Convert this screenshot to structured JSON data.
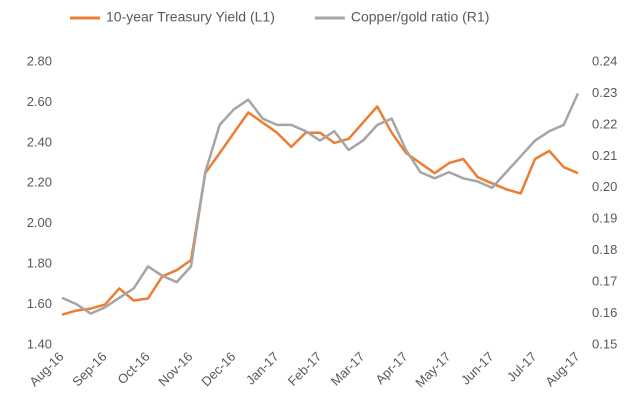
{
  "chart_data": {
    "type": "line",
    "categories": [
      "Aug-16",
      null,
      null,
      "Sep-16",
      null,
      null,
      "Oct-16",
      null,
      null,
      "Nov-16",
      null,
      null,
      "Dec-16",
      null,
      null,
      "Jan-17",
      null,
      null,
      "Feb-17",
      null,
      null,
      "Mar-17",
      null,
      null,
      "Apr-17",
      null,
      null,
      "May-17",
      null,
      null,
      "Jun-17",
      null,
      null,
      "Jul-17",
      null,
      null,
      "Aug-17"
    ],
    "series": [
      {
        "name": "10-year Treasury Yield (L1)",
        "color": "#ed7d31",
        "values": [
          1.55,
          1.57,
          1.58,
          1.6,
          1.68,
          1.62,
          1.63,
          1.74,
          1.77,
          1.82,
          2.25,
          2.35,
          2.45,
          2.55,
          2.5,
          2.45,
          2.38,
          2.45,
          2.45,
          2.4,
          2.42,
          2.5,
          2.58,
          2.45,
          2.35,
          2.3,
          2.25,
          2.3,
          2.32,
          2.23,
          2.2,
          2.17,
          2.15,
          2.32,
          2.36,
          2.28,
          2.25
        ]
      },
      {
        "name": "Copper/gold ratio (R1)",
        "color": "#a5a5a5",
        "axis": "y2",
        "values": [
          0.165,
          0.163,
          0.16,
          0.162,
          0.165,
          0.168,
          0.175,
          0.172,
          0.17,
          0.175,
          0.205,
          0.22,
          0.225,
          0.228,
          0.222,
          0.22,
          0.22,
          0.218,
          0.215,
          0.218,
          0.212,
          0.215,
          0.22,
          0.222,
          0.212,
          0.205,
          0.203,
          0.205,
          0.203,
          0.202,
          0.2,
          0.205,
          0.21,
          0.215,
          0.218,
          0.22,
          0.23
        ]
      }
    ],
    "ylim": [
      1.4,
      2.8
    ],
    "yticks": [
      {
        "value": 1.4,
        "label": "1.40"
      },
      {
        "value": 1.6,
        "label": "1.60"
      },
      {
        "value": 1.8,
        "label": "1.80"
      },
      {
        "value": 2.0,
        "label": "2.00"
      },
      {
        "value": 2.2,
        "label": "2.20"
      },
      {
        "value": 2.4,
        "label": "2.40"
      },
      {
        "value": 2.6,
        "label": "2.60"
      },
      {
        "value": 2.8,
        "label": "2.80"
      }
    ],
    "y2lim": [
      0.15,
      0.24
    ],
    "y2ticks": [
      0.15,
      0.16,
      0.17,
      0.18,
      0.19,
      {
        "value": 0.2,
        "label": "0.20"
      },
      0.21,
      0.22,
      0.23,
      0.24
    ],
    "legend": "top",
    "grid": false
  }
}
